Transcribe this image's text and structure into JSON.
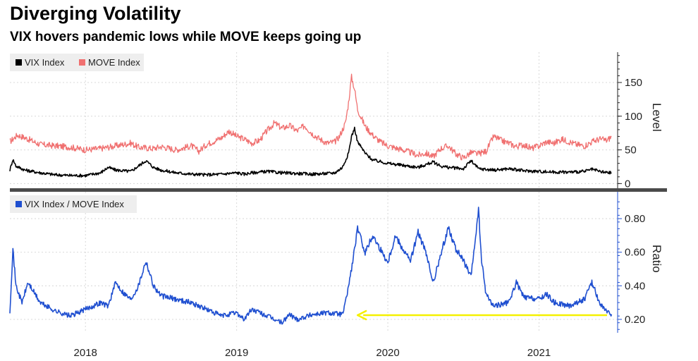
{
  "title": "Diverging Volatility",
  "subtitle": "VIX hovers pandemic lows while MOVE keeps going up",
  "colors": {
    "vix": "#000000",
    "move": "#f07070",
    "ratio": "#1f4fd0",
    "arrow": "#f5f000",
    "grid": "#d8d8d8",
    "divider": "#4a4a4a",
    "legend_bg": "#eeeeee"
  },
  "chart_data": [
    {
      "type": "line",
      "panel": "top",
      "ylabel": "Level",
      "ylim": [
        -8,
        195
      ],
      "yticks": [
        0,
        50,
        100,
        150
      ],
      "xlim": [
        2017.5,
        2021.52
      ],
      "x_tick_labels": [
        "2018",
        "2019",
        "2020",
        "2021"
      ],
      "x_ticks": [
        2018,
        2019,
        2020,
        2021
      ],
      "legend": [
        "VIX Index",
        "MOVE Index"
      ],
      "series": [
        {
          "name": "MOVE Index",
          "points": [
            [
              2017.5,
              62
            ],
            [
              2017.55,
              72
            ],
            [
              2017.6,
              68
            ],
            [
              2017.7,
              58
            ],
            [
              2017.8,
              56
            ],
            [
              2017.9,
              54
            ],
            [
              2018.0,
              50
            ],
            [
              2018.1,
              52
            ],
            [
              2018.2,
              56
            ],
            [
              2018.3,
              60
            ],
            [
              2018.35,
              54
            ],
            [
              2018.45,
              52
            ],
            [
              2018.5,
              55
            ],
            [
              2018.6,
              50
            ],
            [
              2018.7,
              56
            ],
            [
              2018.75,
              48
            ],
            [
              2018.8,
              58
            ],
            [
              2018.9,
              68
            ],
            [
              2018.95,
              78
            ],
            [
              2019.0,
              70
            ],
            [
              2019.05,
              66
            ],
            [
              2019.1,
              60
            ],
            [
              2019.15,
              64
            ],
            [
              2019.2,
              78
            ],
            [
              2019.25,
              90
            ],
            [
              2019.3,
              82
            ],
            [
              2019.35,
              86
            ],
            [
              2019.4,
              78
            ],
            [
              2019.45,
              86
            ],
            [
              2019.5,
              74
            ],
            [
              2019.55,
              66
            ],
            [
              2019.6,
              60
            ],
            [
              2019.65,
              62
            ],
            [
              2019.68,
              70
            ],
            [
              2019.72,
              90
            ],
            [
              2019.74,
              120
            ],
            [
              2019.76,
              158
            ],
            [
              2019.78,
              140
            ],
            [
              2019.8,
              110
            ],
            [
              2019.85,
              85
            ],
            [
              2019.9,
              72
            ],
            [
              2019.95,
              62
            ],
            [
              2020.0,
              56
            ],
            [
              2020.1,
              50
            ],
            [
              2020.2,
              42
            ],
            [
              2020.25,
              45
            ],
            [
              2020.3,
              40
            ],
            [
              2020.35,
              52
            ],
            [
              2020.4,
              56
            ],
            [
              2020.45,
              44
            ],
            [
              2020.5,
              38
            ],
            [
              2020.55,
              46
            ],
            [
              2020.6,
              44
            ],
            [
              2020.65,
              48
            ],
            [
              2020.7,
              70
            ],
            [
              2020.75,
              64
            ],
            [
              2020.8,
              60
            ],
            [
              2020.85,
              55
            ],
            [
              2020.9,
              58
            ],
            [
              2020.95,
              52
            ],
            [
              2021.0,
              56
            ],
            [
              2021.05,
              62
            ],
            [
              2021.1,
              60
            ],
            [
              2021.15,
              66
            ],
            [
              2021.2,
              62
            ],
            [
              2021.25,
              58
            ],
            [
              2021.3,
              56
            ],
            [
              2021.35,
              62
            ],
            [
              2021.4,
              66
            ],
            [
              2021.45,
              64
            ],
            [
              2021.48,
              70
            ]
          ]
        },
        {
          "name": "VIX Index",
          "points": [
            [
              2017.5,
              20
            ],
            [
              2017.52,
              36
            ],
            [
              2017.54,
              26
            ],
            [
              2017.6,
              20
            ],
            [
              2017.7,
              16
            ],
            [
              2017.8,
              13
            ],
            [
              2017.9,
              12
            ],
            [
              2018.0,
              12
            ],
            [
              2018.05,
              14
            ],
            [
              2018.1,
              16
            ],
            [
              2018.15,
              24
            ],
            [
              2018.2,
              20
            ],
            [
              2018.3,
              18
            ],
            [
              2018.35,
              26
            ],
            [
              2018.4,
              34
            ],
            [
              2018.45,
              24
            ],
            [
              2018.5,
              20
            ],
            [
              2018.6,
              16
            ],
            [
              2018.7,
              14
            ],
            [
              2018.8,
              13
            ],
            [
              2018.9,
              14
            ],
            [
              2019.0,
              16
            ],
            [
              2019.05,
              14
            ],
            [
              2019.1,
              16
            ],
            [
              2019.2,
              18
            ],
            [
              2019.3,
              16
            ],
            [
              2019.4,
              15
            ],
            [
              2019.5,
              14
            ],
            [
              2019.6,
              15
            ],
            [
              2019.65,
              16
            ],
            [
              2019.7,
              24
            ],
            [
              2019.74,
              45
            ],
            [
              2019.76,
              70
            ],
            [
              2019.78,
              82
            ],
            [
              2019.8,
              62
            ],
            [
              2019.85,
              45
            ],
            [
              2019.9,
              35
            ],
            [
              2020.0,
              30
            ],
            [
              2020.1,
              27
            ],
            [
              2020.2,
              24
            ],
            [
              2020.25,
              28
            ],
            [
              2020.3,
              32
            ],
            [
              2020.35,
              26
            ],
            [
              2020.4,
              24
            ],
            [
              2020.5,
              22
            ],
            [
              2020.55,
              34
            ],
            [
              2020.6,
              22
            ],
            [
              2020.7,
              20
            ],
            [
              2020.8,
              22
            ],
            [
              2020.9,
              19
            ],
            [
              2021.0,
              18
            ],
            [
              2021.1,
              17
            ],
            [
              2021.2,
              17
            ],
            [
              2021.3,
              18
            ],
            [
              2021.35,
              21
            ],
            [
              2021.4,
              18
            ],
            [
              2021.45,
              16
            ],
            [
              2021.48,
              16
            ]
          ]
        }
      ]
    },
    {
      "type": "line",
      "panel": "bottom",
      "ylabel": "Ratio",
      "ylim": [
        0.12,
        0.96
      ],
      "yticks": [
        0.2,
        0.4,
        0.6,
        0.8
      ],
      "ytick_labels": [
        "0.20",
        "0.40",
        "0.60",
        "0.80"
      ],
      "xlim": [
        2017.5,
        2021.52
      ],
      "legend": [
        "VIX Index / MOVE Index"
      ],
      "series": [
        {
          "name": "VIX Index / MOVE Index",
          "points": [
            [
              2017.5,
              0.25
            ],
            [
              2017.52,
              0.62
            ],
            [
              2017.54,
              0.4
            ],
            [
              2017.58,
              0.3
            ],
            [
              2017.62,
              0.42
            ],
            [
              2017.7,
              0.3
            ],
            [
              2017.8,
              0.25
            ],
            [
              2017.9,
              0.22
            ],
            [
              2018.0,
              0.26
            ],
            [
              2018.05,
              0.28
            ],
            [
              2018.1,
              0.3
            ],
            [
              2018.15,
              0.28
            ],
            [
              2018.2,
              0.42
            ],
            [
              2018.25,
              0.36
            ],
            [
              2018.3,
              0.32
            ],
            [
              2018.35,
              0.4
            ],
            [
              2018.4,
              0.55
            ],
            [
              2018.45,
              0.4
            ],
            [
              2018.5,
              0.34
            ],
            [
              2018.6,
              0.32
            ],
            [
              2018.7,
              0.3
            ],
            [
              2018.8,
              0.26
            ],
            [
              2018.9,
              0.22
            ],
            [
              2019.0,
              0.24
            ],
            [
              2019.05,
              0.2
            ],
            [
              2019.1,
              0.26
            ],
            [
              2019.2,
              0.22
            ],
            [
              2019.3,
              0.18
            ],
            [
              2019.35,
              0.23
            ],
            [
              2019.4,
              0.2
            ],
            [
              2019.5,
              0.23
            ],
            [
              2019.6,
              0.24
            ],
            [
              2019.7,
              0.23
            ],
            [
              2019.72,
              0.3
            ],
            [
              2019.76,
              0.5
            ],
            [
              2019.8,
              0.74
            ],
            [
              2019.85,
              0.6
            ],
            [
              2019.9,
              0.7
            ],
            [
              2019.95,
              0.62
            ],
            [
              2020.0,
              0.54
            ],
            [
              2020.05,
              0.7
            ],
            [
              2020.1,
              0.62
            ],
            [
              2020.15,
              0.55
            ],
            [
              2020.2,
              0.72
            ],
            [
              2020.25,
              0.6
            ],
            [
              2020.3,
              0.42
            ],
            [
              2020.35,
              0.58
            ],
            [
              2020.4,
              0.75
            ],
            [
              2020.45,
              0.62
            ],
            [
              2020.5,
              0.55
            ],
            [
              2020.55,
              0.45
            ],
            [
              2020.6,
              0.85
            ],
            [
              2020.62,
              0.55
            ],
            [
              2020.65,
              0.35
            ],
            [
              2020.7,
              0.28
            ],
            [
              2020.8,
              0.3
            ],
            [
              2020.85,
              0.42
            ],
            [
              2020.9,
              0.33
            ],
            [
              2021.0,
              0.32
            ],
            [
              2021.05,
              0.35
            ],
            [
              2021.1,
              0.3
            ],
            [
              2021.2,
              0.28
            ],
            [
              2021.3,
              0.32
            ],
            [
              2021.35,
              0.42
            ],
            [
              2021.4,
              0.3
            ],
            [
              2021.45,
              0.24
            ],
            [
              2021.48,
              0.23
            ]
          ]
        }
      ],
      "annotations": [
        {
          "type": "arrow",
          "from": [
            2021.45,
            0.225
          ],
          "to": [
            2019.8,
            0.225
          ],
          "description": "horizontal arrow pointing back to late 2019 level"
        }
      ]
    }
  ]
}
